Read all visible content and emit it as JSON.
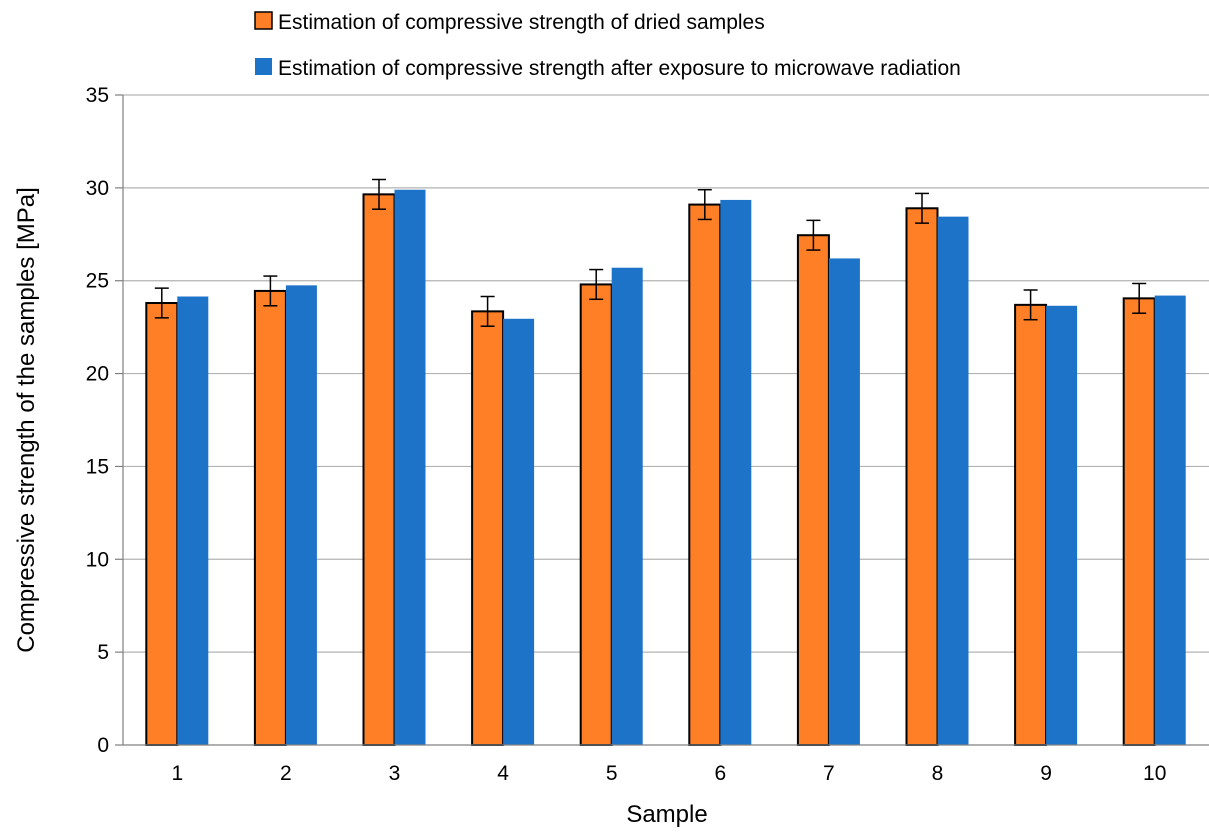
{
  "chart_data": {
    "type": "bar",
    "title": "",
    "xlabel": "Sample",
    "ylabel": "Compressive strength of the samples [MPa]",
    "categories": [
      "1",
      "2",
      "3",
      "4",
      "5",
      "6",
      "7",
      "8",
      "9",
      "10"
    ],
    "ylim": [
      0,
      35
    ],
    "yticks": [
      "0",
      "5",
      "10",
      "15",
      "20",
      "25",
      "30",
      "35"
    ],
    "grid": "horizontal",
    "legend_position": "top",
    "series": [
      {
        "name": "Estimation of compressive strength of dried samples",
        "color": "#FF7F27",
        "outline": "#000000",
        "values": [
          23.8,
          24.45,
          29.65,
          23.35,
          24.8,
          29.1,
          27.45,
          28.9,
          23.7,
          24.05
        ],
        "error": [
          0.8,
          0.8,
          0.8,
          0.8,
          0.8,
          0.8,
          0.8,
          0.8,
          0.8,
          0.8
        ]
      },
      {
        "name": "Estimation of compressive strength after exposure to microwave radiation",
        "color": "#1C73C8",
        "outline": "none",
        "values": [
          24.15,
          24.75,
          29.9,
          22.95,
          25.7,
          29.35,
          26.2,
          28.45,
          23.65,
          24.2
        ]
      }
    ]
  }
}
